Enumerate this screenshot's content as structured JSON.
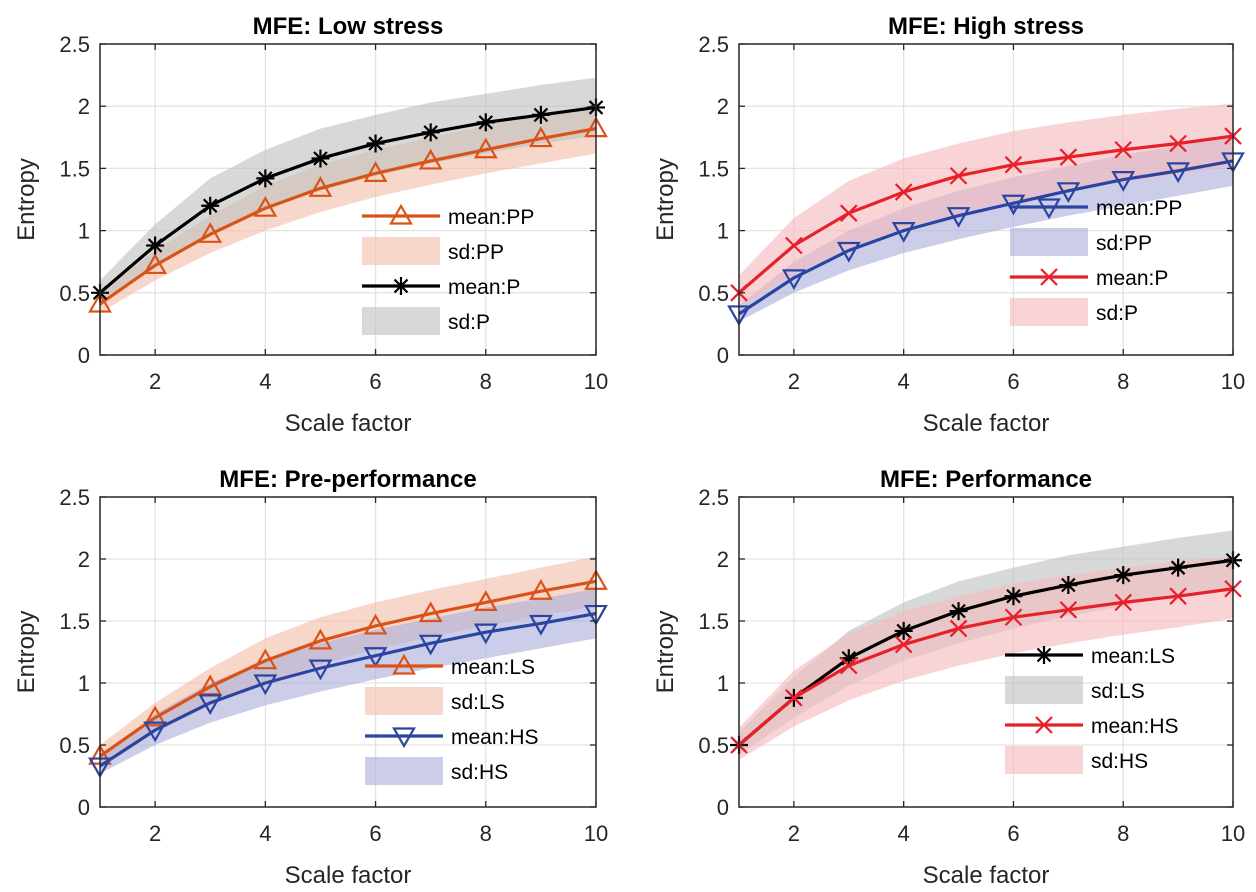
{
  "chart_data": [
    {
      "type": "line",
      "title": "MFE: Low stress",
      "xlabel": "Scale factor",
      "ylabel": "Entropy",
      "xlim": [
        1,
        10
      ],
      "ylim": [
        0,
        2.5
      ],
      "xticks": [
        "2",
        "4",
        "6",
        "8",
        "10"
      ],
      "yticks": [
        "0",
        "0.5",
        "1",
        "1.5",
        "2",
        "2.5"
      ],
      "grid": true,
      "legend_position": "right",
      "x": [
        1,
        2,
        3,
        4,
        5,
        6,
        7,
        8,
        9,
        10
      ],
      "series": [
        {
          "name": "mean:PP",
          "kind": "mean",
          "marker": "triangle-up",
          "color": "#D95319",
          "values": [
            0.41,
            0.72,
            0.97,
            1.18,
            1.34,
            1.46,
            1.56,
            1.65,
            1.74,
            1.82
          ]
        },
        {
          "name": "sd:PP",
          "kind": "sd",
          "color": "#F2BFA8",
          "lower": [
            0.34,
            0.6,
            0.82,
            1.0,
            1.15,
            1.27,
            1.37,
            1.46,
            1.54,
            1.62
          ],
          "upper": [
            0.5,
            0.84,
            1.12,
            1.36,
            1.53,
            1.65,
            1.75,
            1.84,
            1.93,
            2.02
          ]
        },
        {
          "name": "mean:P",
          "kind": "mean",
          "marker": "asterisk",
          "color": "#000000",
          "values": [
            0.5,
            0.88,
            1.2,
            1.42,
            1.58,
            1.7,
            1.79,
            1.87,
            1.93,
            1.99
          ]
        },
        {
          "name": "sd:P",
          "kind": "sd",
          "color": "#BFC2C0",
          "lower": [
            0.42,
            0.72,
            0.98,
            1.18,
            1.32,
            1.44,
            1.54,
            1.62,
            1.7,
            1.76
          ],
          "upper": [
            0.6,
            1.05,
            1.42,
            1.65,
            1.82,
            1.93,
            2.03,
            2.1,
            2.17,
            2.23
          ]
        }
      ]
    },
    {
      "type": "line",
      "title": "MFE: High stress",
      "xlabel": "Scale factor",
      "ylabel": "Entropy",
      "xlim": [
        1,
        10
      ],
      "ylim": [
        0,
        2.5
      ],
      "xticks": [
        "2",
        "4",
        "6",
        "8",
        "10"
      ],
      "yticks": [
        "0",
        "0.5",
        "1",
        "1.5",
        "2",
        "2.5"
      ],
      "grid": true,
      "legend_position": "right",
      "x": [
        1,
        2,
        3,
        4,
        5,
        6,
        7,
        8,
        9,
        10
      ],
      "series": [
        {
          "name": "mean:PP",
          "kind": "mean",
          "marker": "triangle-down",
          "color": "#2B44A0",
          "values": [
            0.33,
            0.62,
            0.84,
            1.0,
            1.12,
            1.22,
            1.32,
            1.41,
            1.48,
            1.56
          ]
        },
        {
          "name": "sd:PP",
          "kind": "sd",
          "color": "#ACB0DB",
          "lower": [
            0.27,
            0.5,
            0.68,
            0.82,
            0.93,
            1.03,
            1.12,
            1.2,
            1.28,
            1.36
          ],
          "upper": [
            0.4,
            0.75,
            1.0,
            1.18,
            1.32,
            1.43,
            1.52,
            1.61,
            1.68,
            1.76
          ]
        },
        {
          "name": "mean:P",
          "kind": "mean",
          "marker": "cross",
          "color": "#E8202A",
          "values": [
            0.5,
            0.88,
            1.14,
            1.31,
            1.44,
            1.53,
            1.59,
            1.65,
            1.7,
            1.76
          ]
        },
        {
          "name": "sd:P",
          "kind": "sd",
          "color": "#F4BABD",
          "lower": [
            0.38,
            0.65,
            0.86,
            1.02,
            1.14,
            1.24,
            1.32,
            1.39,
            1.45,
            1.52
          ],
          "upper": [
            0.64,
            1.1,
            1.4,
            1.58,
            1.7,
            1.8,
            1.87,
            1.93,
            1.98,
            2.02
          ]
        }
      ]
    },
    {
      "type": "line",
      "title": "MFE: Pre-performance",
      "xlabel": "Scale factor",
      "ylabel": "Entropy",
      "xlim": [
        1,
        10
      ],
      "ylim": [
        0,
        2.5
      ],
      "xticks": [
        "2",
        "4",
        "6",
        "8",
        "10"
      ],
      "yticks": [
        "0",
        "0.5",
        "1",
        "1.5",
        "2",
        "2.5"
      ],
      "grid": true,
      "legend_position": "right",
      "x": [
        1,
        2,
        3,
        4,
        5,
        6,
        7,
        8,
        9,
        10
      ],
      "series": [
        {
          "name": "mean:LS",
          "kind": "mean",
          "marker": "triangle-up",
          "color": "#D95319",
          "values": [
            0.41,
            0.72,
            0.97,
            1.18,
            1.34,
            1.46,
            1.56,
            1.65,
            1.74,
            1.82
          ]
        },
        {
          "name": "sd:LS",
          "kind": "sd",
          "color": "#F2BFA8",
          "lower": [
            0.34,
            0.6,
            0.82,
            1.0,
            1.15,
            1.27,
            1.37,
            1.46,
            1.54,
            1.62
          ],
          "upper": [
            0.5,
            0.84,
            1.12,
            1.36,
            1.53,
            1.65,
            1.75,
            1.84,
            1.93,
            2.02
          ]
        },
        {
          "name": "mean:HS",
          "kind": "mean",
          "marker": "triangle-down",
          "color": "#2B44A0",
          "values": [
            0.33,
            0.62,
            0.84,
            1.0,
            1.12,
            1.22,
            1.32,
            1.41,
            1.48,
            1.56
          ]
        },
        {
          "name": "sd:HS",
          "kind": "sd",
          "color": "#ACB0DB",
          "lower": [
            0.27,
            0.5,
            0.68,
            0.82,
            0.93,
            1.03,
            1.12,
            1.2,
            1.28,
            1.36
          ],
          "upper": [
            0.4,
            0.75,
            1.0,
            1.18,
            1.32,
            1.43,
            1.52,
            1.61,
            1.68,
            1.76
          ]
        }
      ]
    },
    {
      "type": "line",
      "title": "MFE: Performance",
      "xlabel": "Scale factor",
      "ylabel": "Entropy",
      "xlim": [
        1,
        10
      ],
      "ylim": [
        0,
        2.5
      ],
      "xticks": [
        "2",
        "4",
        "6",
        "8",
        "10"
      ],
      "yticks": [
        "0",
        "0.5",
        "1",
        "1.5",
        "2",
        "2.5"
      ],
      "grid": true,
      "legend_position": "right",
      "x": [
        1,
        2,
        3,
        4,
        5,
        6,
        7,
        8,
        9,
        10
      ],
      "series": [
        {
          "name": "mean:LS",
          "kind": "mean",
          "marker": "asterisk",
          "color": "#000000",
          "values": [
            0.5,
            0.88,
            1.2,
            1.42,
            1.58,
            1.7,
            1.79,
            1.87,
            1.93,
            1.99
          ]
        },
        {
          "name": "sd:LS",
          "kind": "sd",
          "color": "#BFC2C0",
          "lower": [
            0.42,
            0.72,
            0.98,
            1.18,
            1.32,
            1.44,
            1.54,
            1.62,
            1.7,
            1.76
          ],
          "upper": [
            0.6,
            1.05,
            1.42,
            1.65,
            1.82,
            1.93,
            2.03,
            2.1,
            2.17,
            2.23
          ]
        },
        {
          "name": "mean:HS",
          "kind": "mean",
          "marker": "cross",
          "color": "#E8202A",
          "values": [
            0.5,
            0.88,
            1.14,
            1.31,
            1.44,
            1.53,
            1.59,
            1.65,
            1.7,
            1.76
          ]
        },
        {
          "name": "sd:HS",
          "kind": "sd",
          "color": "#F4BABD",
          "lower": [
            0.38,
            0.65,
            0.86,
            1.02,
            1.14,
            1.24,
            1.32,
            1.39,
            1.45,
            1.52
          ],
          "upper": [
            0.64,
            1.1,
            1.4,
            1.58,
            1.7,
            1.8,
            1.87,
            1.93,
            1.98,
            2.02
          ]
        }
      ]
    }
  ]
}
